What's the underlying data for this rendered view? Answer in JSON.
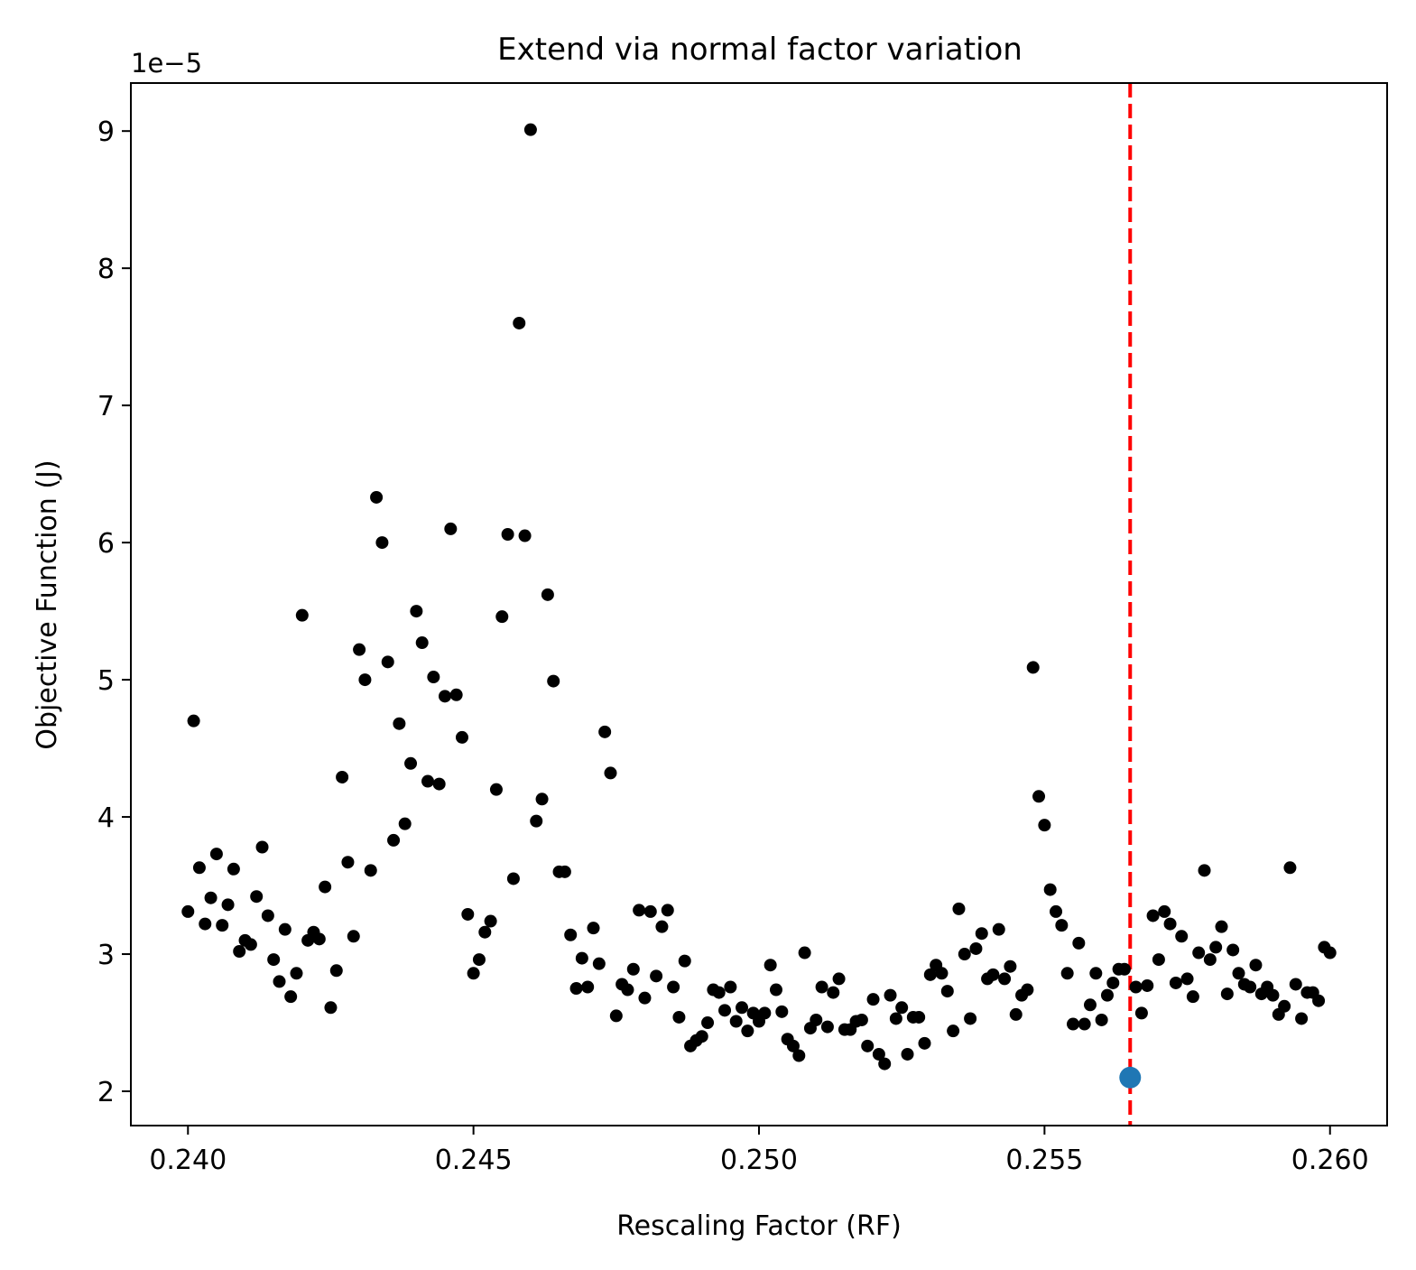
{
  "chart_data": {
    "type": "scatter",
    "title": "Extend via normal factor variation",
    "xlabel": "Rescaling Factor (RF)",
    "ylabel": "Objective Function (J)",
    "y_offset_label": "1e−5",
    "y_scale": 1e-05,
    "xlim": [
      0.239,
      0.261
    ],
    "ylim": [
      1.75,
      9.35
    ],
    "x_ticks": [
      0.24,
      0.245,
      0.25,
      0.255,
      0.26
    ],
    "x_tick_labels": [
      "0.240",
      "0.245",
      "0.250",
      "0.255",
      "0.260"
    ],
    "y_ticks": [
      2,
      3,
      4,
      5,
      6,
      7,
      8,
      9
    ],
    "y_tick_labels": [
      "2",
      "3",
      "4",
      "5",
      "6",
      "7",
      "8",
      "9"
    ],
    "grid": false,
    "series": [
      {
        "color": "#000000",
        "marker": "small-dot",
        "points": [
          [
            0.24,
            3.31
          ],
          [
            0.2401,
            4.7
          ],
          [
            0.2402,
            3.63
          ],
          [
            0.2403,
            3.22
          ],
          [
            0.2404,
            3.41
          ],
          [
            0.2405,
            3.73
          ],
          [
            0.2406,
            3.21
          ],
          [
            0.2407,
            3.36
          ],
          [
            0.2408,
            3.62
          ],
          [
            0.2409,
            3.02
          ],
          [
            0.241,
            3.1
          ],
          [
            0.2411,
            3.07
          ],
          [
            0.2412,
            3.42
          ],
          [
            0.2413,
            3.78
          ],
          [
            0.2414,
            3.28
          ],
          [
            0.2415,
            2.96
          ],
          [
            0.2416,
            2.8
          ],
          [
            0.2417,
            3.18
          ],
          [
            0.2418,
            2.69
          ],
          [
            0.2419,
            2.86
          ],
          [
            0.242,
            5.47
          ],
          [
            0.2421,
            3.1
          ],
          [
            0.2422,
            3.16
          ],
          [
            0.2423,
            3.11
          ],
          [
            0.2424,
            3.49
          ],
          [
            0.2425,
            2.61
          ],
          [
            0.2426,
            2.88
          ],
          [
            0.2427,
            4.29
          ],
          [
            0.2428,
            3.67
          ],
          [
            0.2429,
            3.13
          ],
          [
            0.243,
            5.22
          ],
          [
            0.2431,
            5.0
          ],
          [
            0.2432,
            3.61
          ],
          [
            0.2433,
            6.33
          ],
          [
            0.2434,
            6.0
          ],
          [
            0.2435,
            5.13
          ],
          [
            0.2436,
            3.83
          ],
          [
            0.2437,
            4.68
          ],
          [
            0.2438,
            3.95
          ],
          [
            0.2439,
            4.39
          ],
          [
            0.244,
            5.5
          ],
          [
            0.2441,
            5.27
          ],
          [
            0.2442,
            4.26
          ],
          [
            0.2443,
            5.02
          ],
          [
            0.2444,
            4.24
          ],
          [
            0.2445,
            4.88
          ],
          [
            0.2446,
            6.1
          ],
          [
            0.2447,
            4.89
          ],
          [
            0.2448,
            4.58
          ],
          [
            0.2449,
            3.29
          ],
          [
            0.245,
            2.86
          ],
          [
            0.2451,
            2.96
          ],
          [
            0.2452,
            3.16
          ],
          [
            0.2453,
            3.24
          ],
          [
            0.2454,
            4.2
          ],
          [
            0.2455,
            5.46
          ],
          [
            0.2456,
            6.06
          ],
          [
            0.2457,
            3.55
          ],
          [
            0.2458,
            7.6
          ],
          [
            0.2459,
            6.05
          ],
          [
            0.246,
            9.01
          ],
          [
            0.2461,
            3.97
          ],
          [
            0.2462,
            4.13
          ],
          [
            0.2463,
            5.62
          ],
          [
            0.2464,
            4.99
          ],
          [
            0.2465,
            3.6
          ],
          [
            0.2466,
            3.6
          ],
          [
            0.2467,
            3.14
          ],
          [
            0.2468,
            2.75
          ],
          [
            0.2469,
            2.97
          ],
          [
            0.247,
            2.76
          ],
          [
            0.2471,
            3.19
          ],
          [
            0.2472,
            2.93
          ],
          [
            0.2473,
            4.62
          ],
          [
            0.2474,
            4.32
          ],
          [
            0.2475,
            2.55
          ],
          [
            0.2476,
            2.78
          ],
          [
            0.2477,
            2.74
          ],
          [
            0.2478,
            2.89
          ],
          [
            0.2479,
            3.32
          ],
          [
            0.248,
            2.68
          ],
          [
            0.2481,
            3.31
          ],
          [
            0.2482,
            2.84
          ],
          [
            0.2483,
            3.2
          ],
          [
            0.2484,
            3.32
          ],
          [
            0.2485,
            2.76
          ],
          [
            0.2486,
            2.54
          ],
          [
            0.2487,
            2.95
          ],
          [
            0.2488,
            2.33
          ],
          [
            0.2489,
            2.37
          ],
          [
            0.249,
            2.4
          ],
          [
            0.2491,
            2.5
          ],
          [
            0.2492,
            2.74
          ],
          [
            0.2493,
            2.72
          ],
          [
            0.2494,
            2.59
          ],
          [
            0.2495,
            2.76
          ],
          [
            0.2496,
            2.51
          ],
          [
            0.2497,
            2.61
          ],
          [
            0.2498,
            2.44
          ],
          [
            0.2499,
            2.57
          ],
          [
            0.25,
            2.51
          ],
          [
            0.2501,
            2.57
          ],
          [
            0.2502,
            2.92
          ],
          [
            0.2503,
            2.74
          ],
          [
            0.2504,
            2.58
          ],
          [
            0.2505,
            2.38
          ],
          [
            0.2506,
            2.33
          ],
          [
            0.2507,
            2.26
          ],
          [
            0.2508,
            3.01
          ],
          [
            0.2509,
            2.46
          ],
          [
            0.251,
            2.52
          ],
          [
            0.2511,
            2.76
          ],
          [
            0.2512,
            2.47
          ],
          [
            0.2513,
            2.72
          ],
          [
            0.2514,
            2.82
          ],
          [
            0.2515,
            2.45
          ],
          [
            0.2516,
            2.45
          ],
          [
            0.2517,
            2.51
          ],
          [
            0.2518,
            2.52
          ],
          [
            0.2519,
            2.33
          ],
          [
            0.252,
            2.67
          ],
          [
            0.2521,
            2.27
          ],
          [
            0.2522,
            2.2
          ],
          [
            0.2523,
            2.7
          ],
          [
            0.2524,
            2.53
          ],
          [
            0.2525,
            2.61
          ],
          [
            0.2526,
            2.27
          ],
          [
            0.2527,
            2.54
          ],
          [
            0.2528,
            2.54
          ],
          [
            0.2529,
            2.35
          ],
          [
            0.253,
            2.85
          ],
          [
            0.2531,
            2.92
          ],
          [
            0.2532,
            2.86
          ],
          [
            0.2533,
            2.73
          ],
          [
            0.2534,
            2.44
          ],
          [
            0.2535,
            3.33
          ],
          [
            0.2536,
            3.0
          ],
          [
            0.2537,
            2.53
          ],
          [
            0.2538,
            3.04
          ],
          [
            0.2539,
            3.15
          ],
          [
            0.254,
            2.82
          ],
          [
            0.2541,
            2.85
          ],
          [
            0.2542,
            3.18
          ],
          [
            0.2543,
            2.82
          ],
          [
            0.2544,
            2.91
          ],
          [
            0.2545,
            2.56
          ],
          [
            0.2546,
            2.7
          ],
          [
            0.2547,
            2.74
          ],
          [
            0.2548,
            5.09
          ],
          [
            0.2549,
            4.15
          ],
          [
            0.255,
            3.94
          ],
          [
            0.2551,
            3.47
          ],
          [
            0.2552,
            3.31
          ],
          [
            0.2553,
            3.21
          ],
          [
            0.2554,
            2.86
          ],
          [
            0.2555,
            2.49
          ],
          [
            0.2556,
            3.08
          ],
          [
            0.2557,
            2.49
          ],
          [
            0.2558,
            2.63
          ],
          [
            0.2559,
            2.86
          ],
          [
            0.256,
            2.52
          ],
          [
            0.2561,
            2.7
          ],
          [
            0.2562,
            2.79
          ],
          [
            0.2563,
            2.89
          ],
          [
            0.2564,
            2.89
          ],
          [
            0.2566,
            2.76
          ],
          [
            0.2567,
            2.57
          ],
          [
            0.2568,
            2.77
          ],
          [
            0.2569,
            3.28
          ],
          [
            0.257,
            2.96
          ],
          [
            0.2571,
            3.31
          ],
          [
            0.2572,
            3.22
          ],
          [
            0.2573,
            2.79
          ],
          [
            0.2574,
            3.13
          ],
          [
            0.2575,
            2.82
          ],
          [
            0.2576,
            2.69
          ],
          [
            0.2577,
            3.01
          ],
          [
            0.2578,
            3.61
          ],
          [
            0.2579,
            2.96
          ],
          [
            0.258,
            3.05
          ],
          [
            0.2581,
            3.2
          ],
          [
            0.2582,
            2.71
          ],
          [
            0.2583,
            3.03
          ],
          [
            0.2584,
            2.86
          ],
          [
            0.2585,
            2.78
          ],
          [
            0.2586,
            2.76
          ],
          [
            0.2587,
            2.92
          ],
          [
            0.2588,
            2.71
          ],
          [
            0.2589,
            2.76
          ],
          [
            0.259,
            2.7
          ],
          [
            0.2591,
            2.56
          ],
          [
            0.2592,
            2.62
          ],
          [
            0.2593,
            3.63
          ],
          [
            0.2594,
            2.78
          ],
          [
            0.2595,
            2.53
          ],
          [
            0.2596,
            2.72
          ],
          [
            0.2597,
            2.72
          ],
          [
            0.2598,
            2.66
          ],
          [
            0.2599,
            3.05
          ],
          [
            0.26,
            3.01
          ]
        ]
      },
      {
        "color": "#1f77b4",
        "marker": "large-dot",
        "points": [
          [
            0.2565,
            2.1
          ]
        ]
      }
    ],
    "vline": {
      "x": 0.2565,
      "color": "#ff0000",
      "style": "dashed"
    }
  }
}
